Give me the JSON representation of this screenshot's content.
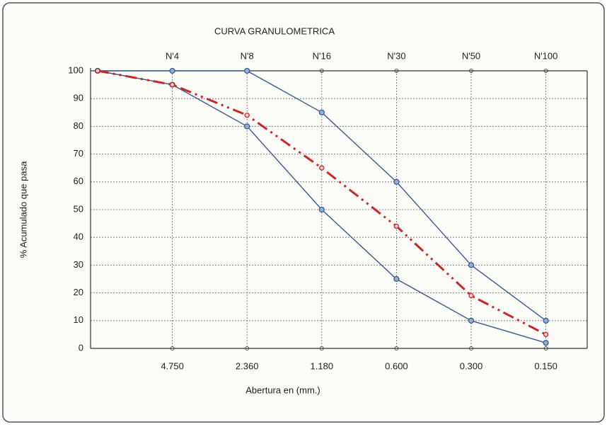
{
  "chart_data": {
    "type": "line",
    "title": "CURVA GRANULOMETRICA",
    "x_label": "Abertura en (mm.)",
    "y_label": "% Acumulado que pasa",
    "categories": [
      null,
      "4.750",
      "2.360",
      "1.180",
      "0.600",
      "0.300",
      "0.150"
    ],
    "top_labels": [
      null,
      "N'4",
      "N'8",
      "N'16",
      "N'30",
      "N'50",
      "N'100"
    ],
    "series": [
      {
        "color": "#3d5a8a",
        "style": "solid",
        "values": [
          100,
          100,
          100,
          85,
          60,
          30,
          10
        ]
      },
      {
        "color": "#3d5a8a",
        "style": "solid",
        "values": [
          100,
          95,
          80,
          50,
          25,
          10,
          2
        ]
      },
      {
        "color": "#c8282a",
        "style": "dashdot",
        "values": [
          100,
          95,
          84,
          65,
          44,
          19,
          5
        ]
      }
    ],
    "ylim": [
      0,
      100
    ],
    "yticks": [
      0,
      10,
      20,
      30,
      40,
      50,
      60,
      70,
      80,
      90,
      100
    ],
    "grid": true
  }
}
